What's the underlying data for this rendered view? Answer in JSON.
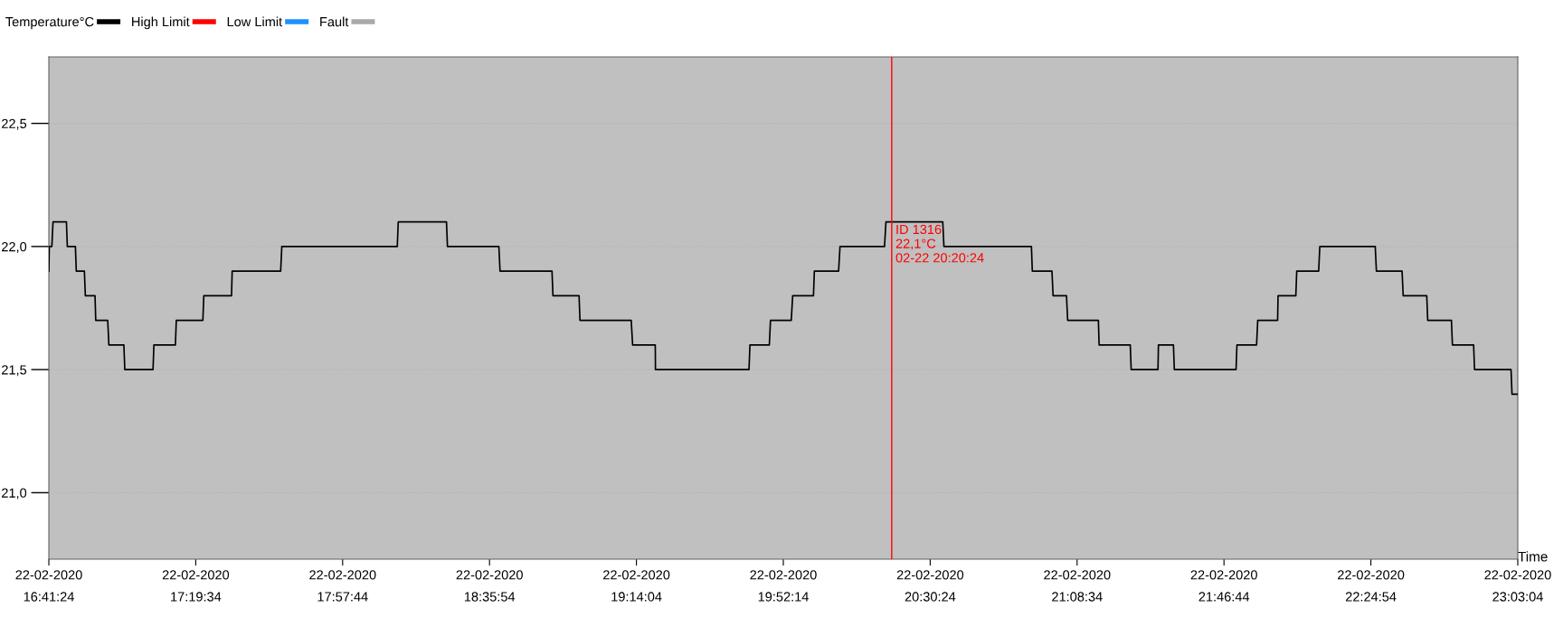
{
  "chart_data": {
    "type": "line",
    "xlabel": "Time",
    "series": [
      {
        "name": "Temperature°C",
        "color": "#000000",
        "x": [
          "2020-02-22T16:41:24",
          "2020-02-22T16:41:31",
          "2020-02-22T16:42:11",
          "2020-02-22T16:42:29",
          "2020-02-22T16:45:58",
          "2020-02-22T16:46:12",
          "2020-02-22T16:48:18",
          "2020-02-22T16:48:32",
          "2020-02-22T16:50:38",
          "2020-02-22T16:50:53",
          "2020-02-22T16:53:24",
          "2020-02-22T16:53:35",
          "2020-02-22T16:56:42",
          "2020-02-22T16:57:00",
          "2020-02-22T17:00:54",
          "2020-02-22T17:01:08",
          "2020-02-22T17:08:28",
          "2020-02-22T17:08:42",
          "2020-02-22T17:14:17",
          "2020-02-22T17:14:31",
          "2020-02-22T17:21:25",
          "2020-02-22T17:21:40",
          "2020-02-22T17:28:52",
          "2020-02-22T17:29:02",
          "2020-02-22T17:41:38",
          "2020-02-22T17:41:56",
          "2020-02-22T18:11:56",
          "2020-02-22T18:12:11",
          "2020-02-22T18:24:43",
          "2020-02-22T18:24:58",
          "2020-02-22T18:38:20",
          "2020-02-22T18:38:38",
          "2020-02-22T18:52:08",
          "2020-02-22T18:52:23",
          "2020-02-22T18:59:10",
          "2020-02-22T18:59:24",
          "2020-02-22T19:12:43",
          "2020-02-22T19:13:05",
          "2020-02-22T19:18:58",
          "2020-02-22T19:19:01",
          "2020-02-22T19:43:19",
          "2020-02-22T19:43:34",
          "2020-02-22T19:48:36",
          "2020-02-22T19:48:54",
          "2020-02-22T19:54:18",
          "2020-02-22T19:54:40",
          "2020-02-22T20:00:04",
          "2020-02-22T20:00:18",
          "2020-02-22T20:06:36",
          "2020-02-22T20:06:58",
          "2020-02-22T20:18:32",
          "2020-02-22T20:18:54",
          "2020-02-22T20:33:40",
          "2020-02-22T20:33:58",
          "2020-02-22T20:56:42",
          "2020-02-22T20:56:56",
          "2020-02-22T21:02:02",
          "2020-02-22T21:02:20",
          "2020-02-22T21:05:49",
          "2020-02-22T21:06:07",
          "2020-02-22T21:14:06",
          "2020-02-22T21:14:17",
          "2020-02-22T21:22:23",
          "2020-02-22T21:22:37",
          "2020-02-22T21:29:35",
          "2020-02-22T21:29:42",
          "2020-02-22T21:33:36",
          "2020-02-22T21:33:50",
          "2020-02-22T21:49:52",
          "2020-02-22T21:50:06",
          "2020-02-22T21:55:12",
          "2020-02-22T21:55:30",
          "2020-02-22T22:00:40",
          "2020-02-22T22:00:47",
          "2020-02-22T22:05:24",
          "2020-02-22T22:05:38",
          "2020-02-22T22:11:20",
          "2020-02-22T22:11:38",
          "2020-02-22T22:26:02",
          "2020-02-22T22:26:20",
          "2020-02-22T22:33:00",
          "2020-02-22T22:33:18",
          "2020-02-22T22:39:25",
          "2020-02-22T22:39:40",
          "2020-02-22T22:45:50",
          "2020-02-22T22:46:05",
          "2020-02-22T22:51:36",
          "2020-02-22T22:51:50",
          "2020-02-22T23:01:19",
          "2020-02-22T23:01:34",
          "2020-02-22T23:03:04"
        ],
        "values": [
          21.9,
          22.0,
          22.0,
          22.1,
          22.1,
          22.0,
          22.0,
          21.9,
          21.9,
          21.8,
          21.8,
          21.7,
          21.7,
          21.6,
          21.6,
          21.5,
          21.5,
          21.6,
          21.6,
          21.7,
          21.7,
          21.8,
          21.8,
          21.9,
          21.9,
          22.0,
          22.0,
          22.1,
          22.1,
          22.0,
          22.0,
          21.9,
          21.9,
          21.8,
          21.8,
          21.7,
          21.7,
          21.6,
          21.6,
          21.5,
          21.5,
          21.6,
          21.6,
          21.7,
          21.7,
          21.8,
          21.8,
          21.9,
          21.9,
          22.0,
          22.0,
          22.1,
          22.1,
          22.0,
          22.0,
          21.9,
          21.9,
          21.8,
          21.8,
          21.7,
          21.7,
          21.6,
          21.6,
          21.5,
          21.5,
          21.6,
          21.6,
          21.5,
          21.5,
          21.6,
          21.6,
          21.7,
          21.7,
          21.8,
          21.8,
          21.9,
          21.9,
          22.0,
          22.0,
          21.9,
          21.9,
          21.8,
          21.8,
          21.7,
          21.7,
          21.6,
          21.6,
          21.5,
          21.5,
          21.4,
          21.4
        ]
      },
      {
        "name": "High Limit",
        "color": "#ff0000"
      },
      {
        "name": "Low Limit",
        "color": "#1e90ff"
      },
      {
        "name": "Fault",
        "color": "#a9a9a9"
      }
    ],
    "xlim": [
      "2020-02-22T16:41:24",
      "2020-02-22T23:03:04"
    ],
    "xticks": [
      {
        "value": "2020-02-22T16:41:24",
        "label": "22-02-2020\n16:41:24"
      },
      {
        "value": "2020-02-22T17:19:34",
        "label": "22-02-2020\n17:19:34"
      },
      {
        "value": "2020-02-22T17:57:44",
        "label": "22-02-2020\n17:57:44"
      },
      {
        "value": "2020-02-22T18:35:54",
        "label": "22-02-2020\n18:35:54"
      },
      {
        "value": "2020-02-22T19:14:04",
        "label": "22-02-2020\n19:14:04"
      },
      {
        "value": "2020-02-22T19:52:14",
        "label": "22-02-2020\n19:52:14"
      },
      {
        "value": "2020-02-22T20:30:24",
        "label": "22-02-2020\n20:30:24"
      },
      {
        "value": "2020-02-22T21:08:34",
        "label": "22-02-2020\n21:08:34"
      },
      {
        "value": "2020-02-22T21:46:44",
        "label": "22-02-2020\n21:46:44"
      },
      {
        "value": "2020-02-22T22:24:54",
        "label": "22-02-2020\n22:24:54"
      },
      {
        "value": "2020-02-22T23:03:04",
        "label": "22-02-2020\n23:03:04"
      }
    ],
    "ylim": [
      20.73,
      22.77
    ],
    "yticks": [
      {
        "value": 21.0,
        "label": "21,0"
      },
      {
        "value": 21.5,
        "label": "21,5"
      },
      {
        "value": 22.0,
        "label": "22,0"
      },
      {
        "value": 22.5,
        "label": "22,5"
      }
    ],
    "ref_lines": [
      {
        "axis": "x",
        "value": "2020-02-22T20:20:24",
        "label": "ID 1316\n22,1°C\n02-22 20:20:24",
        "color": "#ff0000"
      }
    ],
    "grid": "y",
    "legend": "top left",
    "line_style": "solid",
    "marker": "none"
  }
}
